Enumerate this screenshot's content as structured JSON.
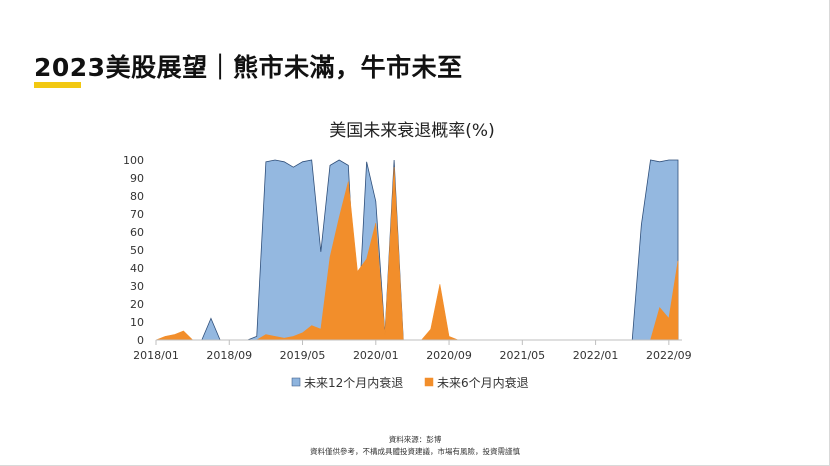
{
  "slide": {
    "title": "2023美股展望｜熊市未滿，牛市未至"
  },
  "footer": {
    "source": "資料來源：彭博",
    "disclaimer": "資料僅供參考，不構成具體投資建議，市場有風險，投資需謹慎"
  },
  "colors": {
    "accent_bar": "#f2c811",
    "series_12m": "#8eb4de",
    "series_12m_line": "#2f4f7a",
    "series_6m": "#f28e2b"
  },
  "chart_data": {
    "type": "area",
    "title": "美国未来衰退概率(%)",
    "xlabel": "",
    "ylabel": "",
    "x_range": [
      "2018/01",
      "2022/10"
    ],
    "x_ticks": [
      "2018/01",
      "2018/09",
      "2019/05",
      "2020/01",
      "2020/09",
      "2021/05",
      "2022/01",
      "2022/09"
    ],
    "ylim": [
      0,
      100
    ],
    "y_ticks": [
      0,
      10,
      20,
      30,
      40,
      50,
      60,
      70,
      80,
      90,
      100
    ],
    "grid": false,
    "legend_position": "bottom",
    "series": [
      {
        "name": "未来12个月内衰退",
        "color": "#8eb4de",
        "points": [
          [
            "2018/01",
            0
          ],
          [
            "2018/05",
            0
          ],
          [
            "2018/06",
            0
          ],
          [
            "2018/07",
            12
          ],
          [
            "2018/08",
            0
          ],
          [
            "2018/09",
            0
          ],
          [
            "2018/11",
            0
          ],
          [
            "2018/12",
            2
          ],
          [
            "2019/01",
            99
          ],
          [
            "2019/02",
            100
          ],
          [
            "2019/03",
            99
          ],
          [
            "2019/04",
            96
          ],
          [
            "2019/05",
            99
          ],
          [
            "2019/06",
            100
          ],
          [
            "2019/07",
            49
          ],
          [
            "2019/08",
            97
          ],
          [
            "2019/09",
            100
          ],
          [
            "2019/10",
            97
          ],
          [
            "2019/11",
            3
          ],
          [
            "2019/12",
            99
          ],
          [
            "2020/01",
            77
          ],
          [
            "2020/02",
            3
          ],
          [
            "2020/03",
            100
          ],
          [
            "2020/04",
            0
          ],
          [
            "2022/04",
            0
          ],
          [
            "2022/05",
            0
          ],
          [
            "2022/06",
            64
          ],
          [
            "2022/07",
            100
          ],
          [
            "2022/08",
            99
          ],
          [
            "2022/09",
            100
          ],
          [
            "2022/10",
            100
          ]
        ]
      },
      {
        "name": "未来6个月内衰退",
        "color": "#f28e2b",
        "points": [
          [
            "2018/01",
            0
          ],
          [
            "2018/02",
            2
          ],
          [
            "2018/03",
            3
          ],
          [
            "2018/04",
            5
          ],
          [
            "2018/05",
            0
          ],
          [
            "2018/12",
            0
          ],
          [
            "2019/01",
            3
          ],
          [
            "2019/02",
            2
          ],
          [
            "2019/03",
            1
          ],
          [
            "2019/04",
            2
          ],
          [
            "2019/05",
            4
          ],
          [
            "2019/06",
            8
          ],
          [
            "2019/07",
            6
          ],
          [
            "2019/08",
            46
          ],
          [
            "2019/09",
            68
          ],
          [
            "2019/10",
            88
          ],
          [
            "2019/11",
            38
          ],
          [
            "2019/12",
            45
          ],
          [
            "2020/01",
            65
          ],
          [
            "2020/02",
            3
          ],
          [
            "2020/03",
            96
          ],
          [
            "2020/04",
            0
          ],
          [
            "2020/06",
            0
          ],
          [
            "2020/07",
            6
          ],
          [
            "2020/08",
            31
          ],
          [
            "2020/09",
            2
          ],
          [
            "2020/10",
            0
          ],
          [
            "2022/06",
            0
          ],
          [
            "2022/07",
            0
          ],
          [
            "2022/08",
            18
          ],
          [
            "2022/09",
            12
          ],
          [
            "2022/10",
            44
          ]
        ]
      }
    ]
  }
}
